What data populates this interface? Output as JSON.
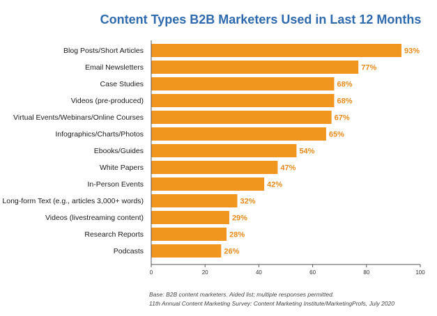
{
  "chart_data": {
    "type": "bar",
    "orientation": "horizontal",
    "title": "Content Types B2B Marketers Used in Last 12 Months",
    "categories": [
      "Blog Posts/Short Articles",
      "Email Newsletters",
      "Case Studies",
      "Videos (pre-produced)",
      "Virtual Events/Webinars/Online Courses",
      "Infographics/Charts/Photos",
      "Ebooks/Guides",
      "White Papers",
      "In-Person Events",
      "Long-form Text (e.g., articles 3,000+ words)",
      "Videos (livestreaming content)",
      "Research Reports",
      "Podcasts"
    ],
    "values": [
      93,
      77,
      68,
      68,
      67,
      65,
      54,
      47,
      42,
      32,
      29,
      28,
      26
    ],
    "value_labels": [
      "93%",
      "77%",
      "68%",
      "68%",
      "67%",
      "65%",
      "54%",
      "47%",
      "42%",
      "32%",
      "29%",
      "28%",
      "26%"
    ],
    "xlim": [
      0,
      100
    ],
    "xticks": [
      0,
      20,
      40,
      60,
      80,
      100
    ],
    "xtick_labels": [
      "0",
      "20",
      "40",
      "60",
      "80",
      "100"
    ],
    "grid": false,
    "colors": {
      "bar": "#f0961f",
      "value_label": "#e88a1a",
      "title": "#2e6aad",
      "axis": "#555555"
    }
  },
  "footnotes": {
    "base": "Base: B2B content marketers. Aided list; multiple responses permitted.",
    "source": "11th Annual Content Marketing Survey: Content Marketing Institute/MarketingProfs, July 2020"
  }
}
